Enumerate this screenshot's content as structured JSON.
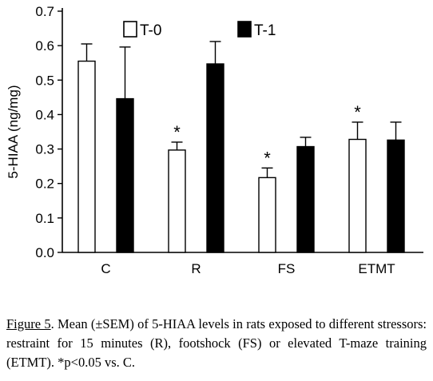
{
  "chart_data": {
    "type": "bar",
    "ylabel": "5-HIAA (ng/mg)",
    "xlabel": "",
    "ylim": [
      0,
      0.7
    ],
    "yticks": [
      "0.0",
      "0.1",
      "0.2",
      "0.3",
      "0.4",
      "0.5",
      "0.6",
      "0.7"
    ],
    "categories": [
      "C",
      "R",
      "FS",
      "ETMT"
    ],
    "series": [
      {
        "name": "T-0",
        "fill": "#ffffff",
        "values": [
          0.555,
          0.297,
          0.217,
          0.328
        ],
        "sem": [
          0.05,
          0.023,
          0.028,
          0.05
        ]
      },
      {
        "name": "T-1",
        "fill": "#000000",
        "values": [
          0.446,
          0.547,
          0.307,
          0.326
        ],
        "sem": [
          0.15,
          0.065,
          0.027,
          0.052
        ]
      }
    ],
    "annotations": [
      {
        "text": "*",
        "category": "R",
        "series": "T-0"
      },
      {
        "text": "*",
        "category": "FS",
        "series": "T-0"
      },
      {
        "text": "*",
        "category": "ETMT",
        "series": "T-0"
      }
    ],
    "legend_position": "top"
  },
  "caption": {
    "figure_ref": "Figure 5",
    "text": ". Mean (±SEM) of 5-HIAA levels in rats exposed to different stressors: restraint for 15 minutes (R), footshock (FS) or elevated T-maze training (ETMT). *p<0.05 vs. C."
  }
}
